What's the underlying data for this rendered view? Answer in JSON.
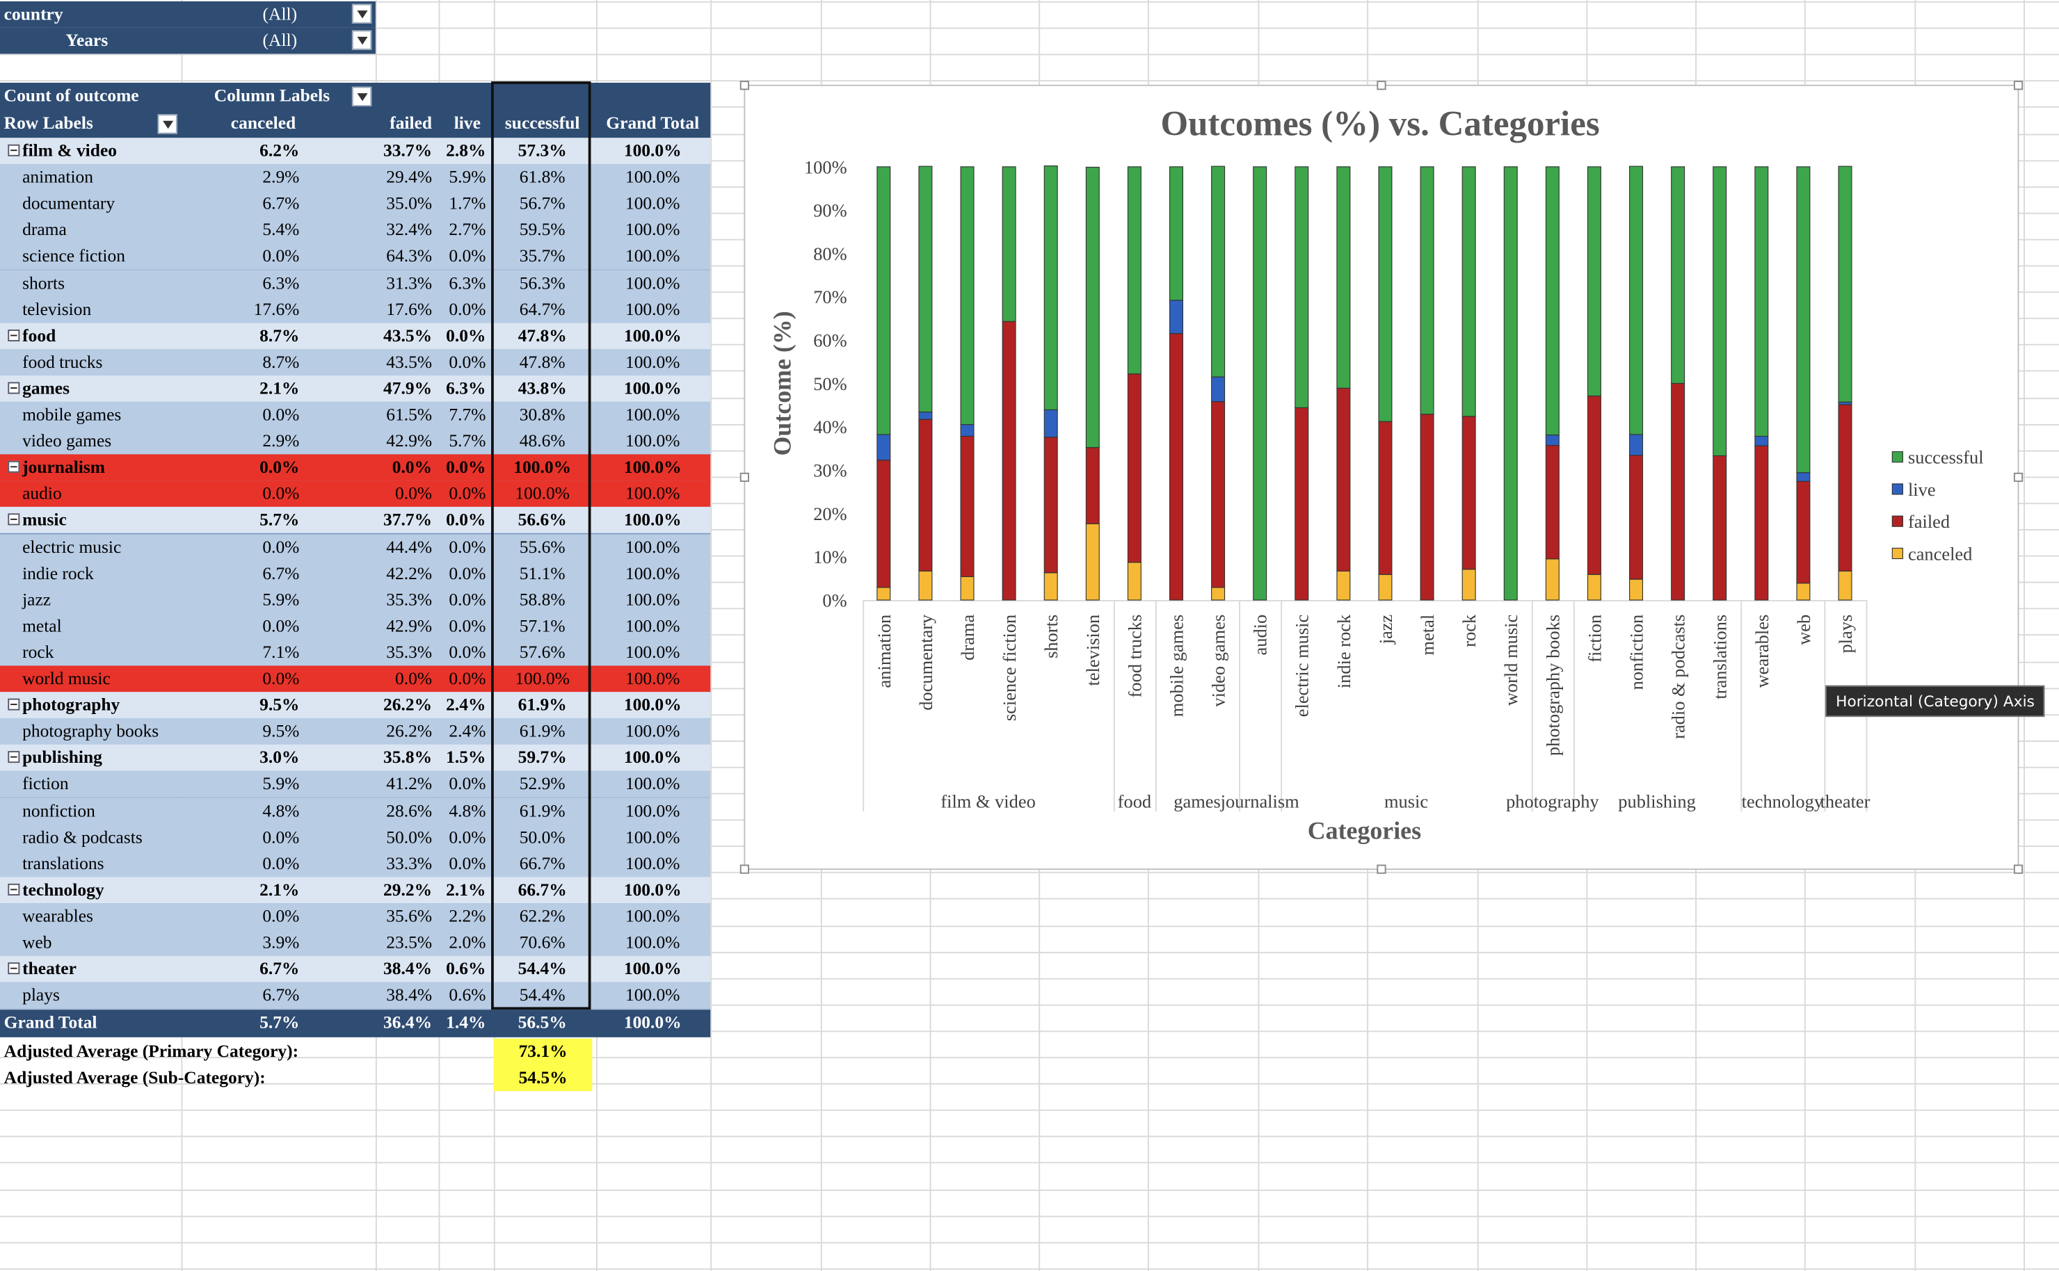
{
  "filters": [
    {
      "label": "country",
      "value": "(All)"
    },
    {
      "label": "Years",
      "value": "(All)"
    }
  ],
  "pivot": {
    "corner_label": "Count of outcome",
    "column_labels": "Column Labels",
    "row_labels": "Row Labels",
    "columns": [
      "canceled",
      "failed",
      "live",
      "successful",
      "Grand Total"
    ],
    "rows": [
      {
        "label": "film & video",
        "level": 0,
        "values": [
          "6.2%",
          "33.7%",
          "2.8%",
          "57.3%",
          "100.0%"
        ]
      },
      {
        "label": "animation",
        "level": 1,
        "values": [
          "2.9%",
          "29.4%",
          "5.9%",
          "61.8%",
          "100.0%"
        ]
      },
      {
        "label": "documentary",
        "level": 1,
        "values": [
          "6.7%",
          "35.0%",
          "1.7%",
          "56.7%",
          "100.0%"
        ]
      },
      {
        "label": "drama",
        "level": 1,
        "values": [
          "5.4%",
          "32.4%",
          "2.7%",
          "59.5%",
          "100.0%"
        ]
      },
      {
        "label": "science fiction",
        "level": 1,
        "values": [
          "0.0%",
          "64.3%",
          "0.0%",
          "35.7%",
          "100.0%"
        ]
      },
      {
        "label": "shorts",
        "level": 1,
        "values": [
          "6.3%",
          "31.3%",
          "6.3%",
          "56.3%",
          "100.0%"
        ]
      },
      {
        "label": "television",
        "level": 1,
        "values": [
          "17.6%",
          "17.6%",
          "0.0%",
          "64.7%",
          "100.0%"
        ]
      },
      {
        "label": "food",
        "level": 0,
        "values": [
          "8.7%",
          "43.5%",
          "0.0%",
          "47.8%",
          "100.0%"
        ]
      },
      {
        "label": "food trucks",
        "level": 1,
        "values": [
          "8.7%",
          "43.5%",
          "0.0%",
          "47.8%",
          "100.0%"
        ]
      },
      {
        "label": "games",
        "level": 0,
        "values": [
          "2.1%",
          "47.9%",
          "6.3%",
          "43.8%",
          "100.0%"
        ]
      },
      {
        "label": "mobile games",
        "level": 1,
        "values": [
          "0.0%",
          "61.5%",
          "7.7%",
          "30.8%",
          "100.0%"
        ]
      },
      {
        "label": "video games",
        "level": 1,
        "values": [
          "2.9%",
          "42.9%",
          "5.7%",
          "48.6%",
          "100.0%"
        ]
      },
      {
        "label": "journalism",
        "level": 0,
        "highlight": true,
        "values": [
          "0.0%",
          "0.0%",
          "0.0%",
          "100.0%",
          "100.0%"
        ]
      },
      {
        "label": "audio",
        "level": 1,
        "highlight": true,
        "values": [
          "0.0%",
          "0.0%",
          "0.0%",
          "100.0%",
          "100.0%"
        ]
      },
      {
        "label": "music",
        "level": 0,
        "values": [
          "5.7%",
          "37.7%",
          "0.0%",
          "56.6%",
          "100.0%"
        ]
      },
      {
        "label": "electric music",
        "level": 1,
        "values": [
          "0.0%",
          "44.4%",
          "0.0%",
          "55.6%",
          "100.0%"
        ]
      },
      {
        "label": "indie rock",
        "level": 1,
        "values": [
          "6.7%",
          "42.2%",
          "0.0%",
          "51.1%",
          "100.0%"
        ]
      },
      {
        "label": "jazz",
        "level": 1,
        "values": [
          "5.9%",
          "35.3%",
          "0.0%",
          "58.8%",
          "100.0%"
        ]
      },
      {
        "label": "metal",
        "level": 1,
        "values": [
          "0.0%",
          "42.9%",
          "0.0%",
          "57.1%",
          "100.0%"
        ]
      },
      {
        "label": "rock",
        "level": 1,
        "values": [
          "7.1%",
          "35.3%",
          "0.0%",
          "57.6%",
          "100.0%"
        ]
      },
      {
        "label": "world music",
        "level": 1,
        "highlight": true,
        "values": [
          "0.0%",
          "0.0%",
          "0.0%",
          "100.0%",
          "100.0%"
        ]
      },
      {
        "label": "photography",
        "level": 0,
        "values": [
          "9.5%",
          "26.2%",
          "2.4%",
          "61.9%",
          "100.0%"
        ]
      },
      {
        "label": "photography books",
        "level": 1,
        "values": [
          "9.5%",
          "26.2%",
          "2.4%",
          "61.9%",
          "100.0%"
        ]
      },
      {
        "label": "publishing",
        "level": 0,
        "values": [
          "3.0%",
          "35.8%",
          "1.5%",
          "59.7%",
          "100.0%"
        ]
      },
      {
        "label": "fiction",
        "level": 1,
        "values": [
          "5.9%",
          "41.2%",
          "0.0%",
          "52.9%",
          "100.0%"
        ]
      },
      {
        "label": "nonfiction",
        "level": 1,
        "values": [
          "4.8%",
          "28.6%",
          "4.8%",
          "61.9%",
          "100.0%"
        ]
      },
      {
        "label": "radio & podcasts",
        "level": 1,
        "values": [
          "0.0%",
          "50.0%",
          "0.0%",
          "50.0%",
          "100.0%"
        ]
      },
      {
        "label": "translations",
        "level": 1,
        "values": [
          "0.0%",
          "33.3%",
          "0.0%",
          "66.7%",
          "100.0%"
        ]
      },
      {
        "label": "technology",
        "level": 0,
        "values": [
          "2.1%",
          "29.2%",
          "2.1%",
          "66.7%",
          "100.0%"
        ]
      },
      {
        "label": "wearables",
        "level": 1,
        "values": [
          "0.0%",
          "35.6%",
          "2.2%",
          "62.2%",
          "100.0%"
        ]
      },
      {
        "label": "web",
        "level": 1,
        "values": [
          "3.9%",
          "23.5%",
          "2.0%",
          "70.6%",
          "100.0%"
        ]
      },
      {
        "label": "theater",
        "level": 0,
        "values": [
          "6.7%",
          "38.4%",
          "0.6%",
          "54.4%",
          "100.0%"
        ]
      },
      {
        "label": "plays",
        "level": 1,
        "values": [
          "6.7%",
          "38.4%",
          "0.6%",
          "54.4%",
          "100.0%"
        ]
      }
    ],
    "grand_total": {
      "label": "Grand Total",
      "values": [
        "5.7%",
        "36.4%",
        "1.4%",
        "56.5%",
        "100.0%"
      ]
    },
    "adjusted": [
      {
        "label": "Adjusted Average (Primary Category):",
        "value": "73.1%"
      },
      {
        "label": "Adjusted Average (Sub-Category):",
        "value": "54.5%"
      }
    ]
  },
  "chart_data": {
    "type": "bar",
    "stacked": true,
    "title": "Outcomes (%) vs. Categories",
    "xlabel": "Categories",
    "ylabel": "Outcome (%)",
    "ylim": [
      0,
      100
    ],
    "y_ticks": [
      "0%",
      "10%",
      "20%",
      "30%",
      "40%",
      "50%",
      "60%",
      "70%",
      "80%",
      "90%",
      "100%"
    ],
    "categories": [
      "animation",
      "documentary",
      "drama",
      "science fiction",
      "shorts",
      "television",
      "food trucks",
      "mobile games",
      "video games",
      "audio",
      "electric music",
      "indie rock",
      "jazz",
      "metal",
      "rock",
      "world music",
      "photography books",
      "fiction",
      "nonfiction",
      "radio & podcasts",
      "translations",
      "wearables",
      "web",
      "plays"
    ],
    "groups": [
      {
        "name": "film & video",
        "count": 6
      },
      {
        "name": "food",
        "count": 1
      },
      {
        "name": "games",
        "count": 2
      },
      {
        "name": "journalism",
        "count": 1
      },
      {
        "name": "music",
        "count": 6
      },
      {
        "name": "photography",
        "count": 1
      },
      {
        "name": "publishing",
        "count": 4
      },
      {
        "name": "technology",
        "count": 2
      },
      {
        "name": "theater",
        "count": 1
      }
    ],
    "series": [
      {
        "name": "canceled",
        "color": "#f5b935",
        "values": [
          2.9,
          6.7,
          5.4,
          0.0,
          6.3,
          17.6,
          8.7,
          0.0,
          2.9,
          0.0,
          0.0,
          6.7,
          5.9,
          0.0,
          7.1,
          0.0,
          9.5,
          5.9,
          4.8,
          0.0,
          0.0,
          0.0,
          3.9,
          6.7
        ]
      },
      {
        "name": "failed",
        "color": "#b22222",
        "values": [
          29.4,
          35.0,
          32.4,
          64.3,
          31.3,
          17.6,
          43.5,
          61.5,
          42.9,
          0.0,
          44.4,
          42.2,
          35.3,
          42.9,
          35.3,
          0.0,
          26.2,
          41.2,
          28.6,
          50.0,
          33.3,
          35.6,
          23.5,
          38.4
        ]
      },
      {
        "name": "live",
        "color": "#2f62c0",
        "values": [
          5.9,
          1.7,
          2.7,
          0.0,
          6.3,
          0.0,
          0.0,
          7.7,
          5.7,
          0.0,
          0.0,
          0.0,
          0.0,
          0.0,
          0.0,
          0.0,
          2.4,
          0.0,
          4.8,
          0.0,
          0.0,
          2.2,
          2.0,
          0.6
        ]
      },
      {
        "name": "successful",
        "color": "#3da64a",
        "values": [
          61.8,
          56.7,
          59.5,
          35.7,
          56.3,
          64.7,
          47.8,
          30.8,
          48.6,
          100.0,
          55.6,
          51.1,
          58.8,
          57.1,
          57.6,
          100.0,
          61.9,
          52.9,
          61.9,
          50.0,
          66.7,
          62.2,
          70.6,
          54.4
        ]
      }
    ],
    "legend": [
      "successful",
      "live",
      "failed",
      "canceled"
    ],
    "legend_position": "right",
    "grid": false
  },
  "tooltip": "Horizontal (Category) Axis"
}
